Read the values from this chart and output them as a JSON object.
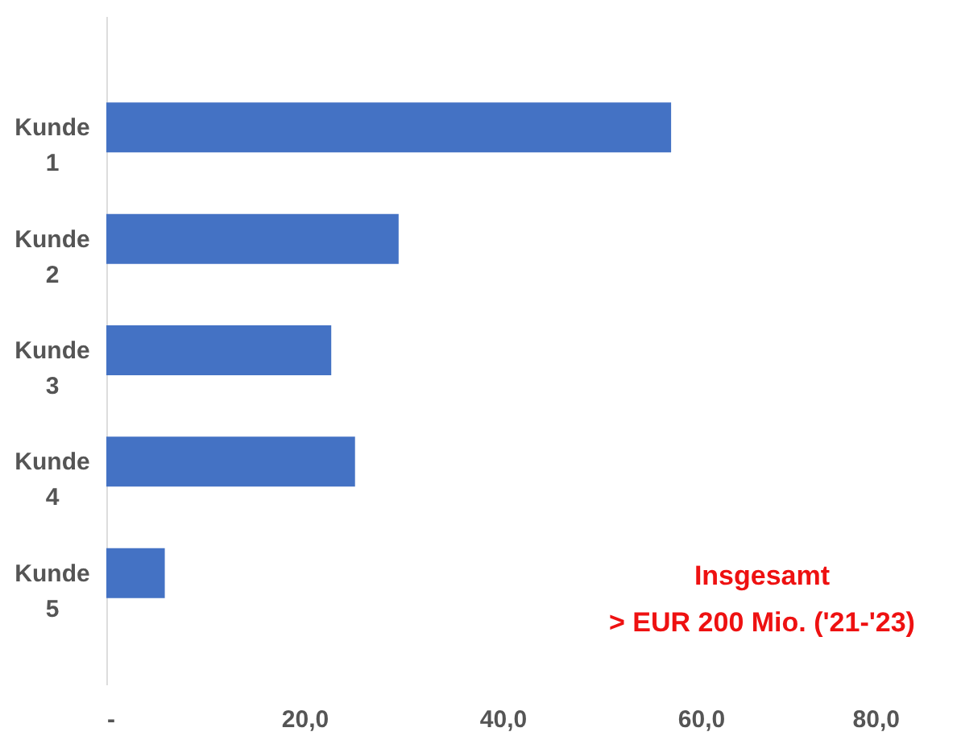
{
  "chart_data": {
    "type": "bar",
    "orientation": "horizontal",
    "categories": [
      "Kunde 1",
      "Kunde 2",
      "Kunde 3",
      "Kunde 4",
      "Kunde 5"
    ],
    "values": [
      57.0,
      29.5,
      22.7,
      25.1,
      5.9
    ],
    "color": "#4472c4",
    "xlim": [
      0,
      80
    ],
    "xticks": [
      {
        "value": 0,
        "label": "-"
      },
      {
        "value": 20,
        "label": "20,0"
      },
      {
        "value": 40,
        "label": "40,0"
      },
      {
        "value": 60,
        "label": "60,0"
      },
      {
        "value": 80,
        "label": "80,0"
      }
    ],
    "grid": false,
    "annotations": [
      "Insgesamt\n> EUR 200 Mio. ('21-'23)"
    ]
  }
}
